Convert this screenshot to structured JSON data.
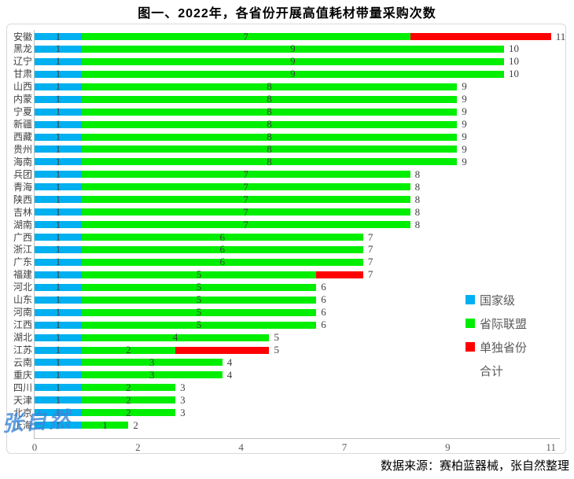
{
  "title": "图一、2022年，各省份开展高值耗材带量采购次数",
  "source_note": "数据来源：赛柏蓝器械，张自然整理",
  "watermark": "张自然",
  "colors": {
    "national_blue": "#00b0f0",
    "alliance_green": "#00ee00",
    "single_red": "#ff0000",
    "axis_line": "#bfbfbf",
    "frame_border": "#d9d9d9",
    "value_text": "#404040",
    "tick_text": "#595959",
    "watermark_blue": "#3b87d9"
  },
  "legend": {
    "position": "right-inside",
    "items": [
      {
        "label": "国家级",
        "color": "#00b0f0"
      },
      {
        "label": "省际联盟",
        "color": "#00ee00"
      },
      {
        "label": "单独省份",
        "color": "#ff0000"
      },
      {
        "label": "合计",
        "color": "none"
      }
    ]
  },
  "chart_data": {
    "type": "bar",
    "orientation": "horizontal-stacked",
    "title": "图一、2022年，各省份开展高值耗材带量采购次数",
    "categories": [
      "安徽",
      "黑龙",
      "辽宁",
      "甘肃",
      "山西",
      "内蒙",
      "宁夏",
      "新疆",
      "西藏",
      "贵州",
      "海南",
      "兵团",
      "青海",
      "陕西",
      "吉林",
      "湖南",
      "广西",
      "浙江",
      "广东",
      "福建",
      "河北",
      "山东",
      "河南",
      "江西",
      "湖北",
      "江苏",
      "云南",
      "重庆",
      "四川",
      "天津",
      "北京",
      "上海"
    ],
    "series": [
      {
        "name": "国家级",
        "color": "#00b0f0",
        "values": [
          1,
          1,
          1,
          1,
          1,
          1,
          1,
          1,
          1,
          1,
          1,
          1,
          1,
          1,
          1,
          1,
          1,
          1,
          1,
          1,
          1,
          1,
          1,
          1,
          1,
          1,
          1,
          1,
          1,
          1,
          1,
          1
        ],
        "show_labels": true
      },
      {
        "name": "省际联盟",
        "color": "#00ee00",
        "values": [
          7,
          9,
          9,
          9,
          8,
          8,
          8,
          8,
          8,
          8,
          8,
          7,
          7,
          7,
          7,
          7,
          6,
          6,
          6,
          5,
          5,
          5,
          5,
          5,
          4,
          2,
          3,
          3,
          2,
          2,
          2,
          1
        ],
        "show_labels": true
      },
      {
        "name": "单独省份",
        "color": "#ff0000",
        "values": [
          3,
          0,
          0,
          0,
          0,
          0,
          0,
          0,
          0,
          0,
          0,
          0,
          0,
          0,
          0,
          0,
          0,
          0,
          0,
          1,
          0,
          0,
          0,
          0,
          0,
          2,
          0,
          0,
          0,
          0,
          0,
          0
        ],
        "show_labels": false
      }
    ],
    "totals": [
      11,
      10,
      10,
      10,
      9,
      9,
      9,
      9,
      9,
      9,
      9,
      8,
      8,
      8,
      8,
      8,
      7,
      7,
      7,
      7,
      6,
      6,
      6,
      6,
      5,
      5,
      4,
      4,
      3,
      3,
      3,
      2
    ],
    "xlim": [
      0,
      11
    ],
    "xticks": {
      "values": [
        0,
        2.2,
        4.4,
        6.6,
        8.8,
        11
      ],
      "labels": [
        "0",
        "2",
        "4",
        "7",
        "9",
        "11"
      ]
    },
    "grid": false,
    "legend_position": "right-inside"
  }
}
